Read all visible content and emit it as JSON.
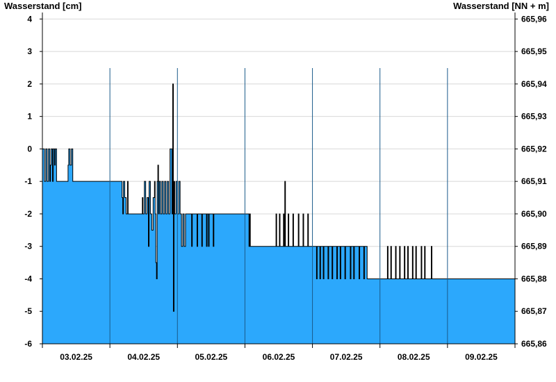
{
  "chart_data": {
    "type": "area",
    "ylabel": "Wasserstand [cm]",
    "ylabel_right": "Wasserstand [NN + m]",
    "ylim": [
      -6,
      4.2
    ],
    "ylim_right": [
      665.86,
      665.962
    ],
    "yticks": [
      4,
      3,
      2,
      1,
      0,
      -1,
      -2,
      -3,
      -4,
      -5,
      -6
    ],
    "yticks_right": [
      "665,96",
      "665,95",
      "665,94",
      "665,93",
      "665,92",
      "665,91",
      "665,90",
      "665,89",
      "665,88",
      "665,87",
      "665,86"
    ],
    "xlim_days": [
      0,
      7.0
    ],
    "xticks": [
      "03.02.25",
      "04.02.25",
      "05.02.25",
      "06.02.25",
      "07.02.25",
      "08.02.25",
      "09.02.25"
    ],
    "grid": true,
    "colors": {
      "fill": "#2ca8fc",
      "line": "#000000",
      "grid": "#d8d8d8",
      "day_separator": "#1a5a8a"
    },
    "series": [
      {
        "values": [
          [
            0.0,
            0
          ],
          [
            0.03,
            -1
          ],
          [
            0.05,
            0
          ],
          [
            0.07,
            -1
          ],
          [
            0.09,
            0
          ],
          [
            0.11,
            -1
          ],
          [
            0.12,
            -0.5
          ],
          [
            0.13,
            0
          ],
          [
            0.15,
            -1
          ],
          [
            0.16,
            0
          ],
          [
            0.18,
            -0.5
          ],
          [
            0.19,
            0
          ],
          [
            0.21,
            -1
          ],
          [
            0.37,
            -1
          ],
          [
            0.38,
            -0.5
          ],
          [
            0.39,
            0
          ],
          [
            0.41,
            -0.5
          ],
          [
            0.43,
            0
          ],
          [
            0.45,
            -1
          ],
          [
            1.17,
            -1
          ],
          [
            1.18,
            -1.5
          ],
          [
            1.19,
            -2
          ],
          [
            1.2,
            -1
          ],
          [
            1.22,
            -1.5
          ],
          [
            1.24,
            -2
          ],
          [
            1.26,
            -1
          ],
          [
            1.27,
            -2
          ],
          [
            1.47,
            -2
          ],
          [
            1.48,
            -1.5
          ],
          [
            1.49,
            -2
          ],
          [
            1.51,
            -1
          ],
          [
            1.53,
            -2
          ],
          [
            1.55,
            -1.5
          ],
          [
            1.57,
            -3
          ],
          [
            1.58,
            -1
          ],
          [
            1.6,
            -2
          ],
          [
            1.62,
            -2.5
          ],
          [
            1.64,
            -1.5
          ],
          [
            1.66,
            -1
          ],
          [
            1.67,
            -2
          ],
          [
            1.68,
            -3.5
          ],
          [
            1.69,
            -4
          ],
          [
            1.7,
            -1
          ],
          [
            1.71,
            -0.5
          ],
          [
            1.72,
            -2
          ],
          [
            1.73,
            -1
          ],
          [
            1.75,
            -2
          ],
          [
            1.77,
            -1
          ],
          [
            1.79,
            -2
          ],
          [
            1.81,
            -1
          ],
          [
            1.83,
            -2
          ],
          [
            1.85,
            -1
          ],
          [
            1.87,
            -2
          ],
          [
            1.89,
            0
          ],
          [
            1.92,
            -2
          ],
          [
            1.93,
            2
          ],
          [
            1.94,
            -5
          ],
          [
            1.95,
            -1
          ],
          [
            1.96,
            -2
          ],
          [
            1.98,
            -1
          ],
          [
            2.0,
            -2
          ],
          [
            2.02,
            -1
          ],
          [
            2.04,
            -2
          ],
          [
            2.06,
            -3
          ],
          [
            2.08,
            -2
          ],
          [
            2.1,
            -3
          ],
          [
            2.12,
            -2
          ],
          [
            2.2,
            -2
          ],
          [
            2.21,
            -3
          ],
          [
            2.22,
            -2
          ],
          [
            2.28,
            -2
          ],
          [
            2.29,
            -3
          ],
          [
            2.3,
            -2
          ],
          [
            2.35,
            -2
          ],
          [
            2.36,
            -3
          ],
          [
            2.37,
            -2
          ],
          [
            2.42,
            -2
          ],
          [
            2.43,
            -3
          ],
          [
            2.44,
            -2
          ],
          [
            2.46,
            -3
          ],
          [
            2.47,
            -2
          ],
          [
            2.52,
            -2
          ],
          [
            2.53,
            -3
          ],
          [
            2.54,
            -2
          ],
          [
            3.05,
            -2
          ],
          [
            3.06,
            -3
          ],
          [
            3.07,
            -2
          ],
          [
            3.08,
            -3
          ],
          [
            3.1,
            -3
          ],
          [
            3.45,
            -3
          ],
          [
            3.46,
            -2
          ],
          [
            3.47,
            -3
          ],
          [
            3.5,
            -3
          ],
          [
            3.51,
            -2
          ],
          [
            3.52,
            -3
          ],
          [
            3.56,
            -3
          ],
          [
            3.57,
            -2
          ],
          [
            3.58,
            -3
          ],
          [
            3.59,
            -1
          ],
          [
            3.6,
            -3
          ],
          [
            3.63,
            -3
          ],
          [
            3.64,
            -2
          ],
          [
            3.65,
            -3
          ],
          [
            3.7,
            -3
          ],
          [
            3.71,
            -2
          ],
          [
            3.72,
            -3
          ],
          [
            3.78,
            -3
          ],
          [
            3.79,
            -2
          ],
          [
            3.8,
            -3
          ],
          [
            3.85,
            -3
          ],
          [
            3.86,
            -2
          ],
          [
            3.87,
            -3
          ],
          [
            3.92,
            -3
          ],
          [
            3.93,
            -2
          ],
          [
            3.94,
            -3
          ],
          [
            4.05,
            -3
          ],
          [
            4.06,
            -4
          ],
          [
            4.07,
            -3
          ],
          [
            4.1,
            -3
          ],
          [
            4.11,
            -4
          ],
          [
            4.12,
            -3
          ],
          [
            4.15,
            -3
          ],
          [
            4.16,
            -4
          ],
          [
            4.17,
            -3
          ],
          [
            4.22,
            -3
          ],
          [
            4.23,
            -4
          ],
          [
            4.24,
            -3
          ],
          [
            4.28,
            -3
          ],
          [
            4.29,
            -4
          ],
          [
            4.3,
            -3
          ],
          [
            4.35,
            -3
          ],
          [
            4.36,
            -4
          ],
          [
            4.37,
            -3
          ],
          [
            4.4,
            -3
          ],
          [
            4.41,
            -4
          ],
          [
            4.42,
            -3
          ],
          [
            4.47,
            -3
          ],
          [
            4.48,
            -4
          ],
          [
            4.49,
            -3
          ],
          [
            4.55,
            -3
          ],
          [
            4.56,
            -4
          ],
          [
            4.57,
            -3
          ],
          [
            4.6,
            -3
          ],
          [
            4.61,
            -4
          ],
          [
            4.62,
            -3
          ],
          [
            4.68,
            -3
          ],
          [
            4.69,
            -4
          ],
          [
            4.7,
            -3
          ],
          [
            4.75,
            -3
          ],
          [
            4.76,
            -4
          ],
          [
            4.77,
            -3
          ],
          [
            4.8,
            -3
          ],
          [
            4.81,
            -4
          ],
          [
            4.87,
            -4
          ],
          [
            5.1,
            -4
          ],
          [
            5.11,
            -3
          ],
          [
            5.12,
            -4
          ],
          [
            5.15,
            -4
          ],
          [
            5.16,
            -3
          ],
          [
            5.17,
            -4
          ],
          [
            5.22,
            -4
          ],
          [
            5.23,
            -3
          ],
          [
            5.24,
            -4
          ],
          [
            5.28,
            -4
          ],
          [
            5.29,
            -3
          ],
          [
            5.3,
            -4
          ],
          [
            5.35,
            -4
          ],
          [
            5.36,
            -3
          ],
          [
            5.37,
            -4
          ],
          [
            5.4,
            -4
          ],
          [
            5.41,
            -3
          ],
          [
            5.42,
            -4
          ],
          [
            5.47,
            -4
          ],
          [
            5.48,
            -3
          ],
          [
            5.49,
            -4
          ],
          [
            5.52,
            -4
          ],
          [
            5.53,
            -3
          ],
          [
            5.54,
            -4
          ],
          [
            5.6,
            -4
          ],
          [
            5.61,
            -3
          ],
          [
            5.62,
            -4
          ],
          [
            5.65,
            -4
          ],
          [
            5.66,
            -3
          ],
          [
            5.67,
            -4
          ],
          [
            5.75,
            -4
          ],
          [
            5.76,
            -3
          ],
          [
            5.77,
            -4
          ],
          [
            6.0,
            -4
          ],
          [
            7.0,
            -4
          ]
        ]
      }
    ]
  }
}
